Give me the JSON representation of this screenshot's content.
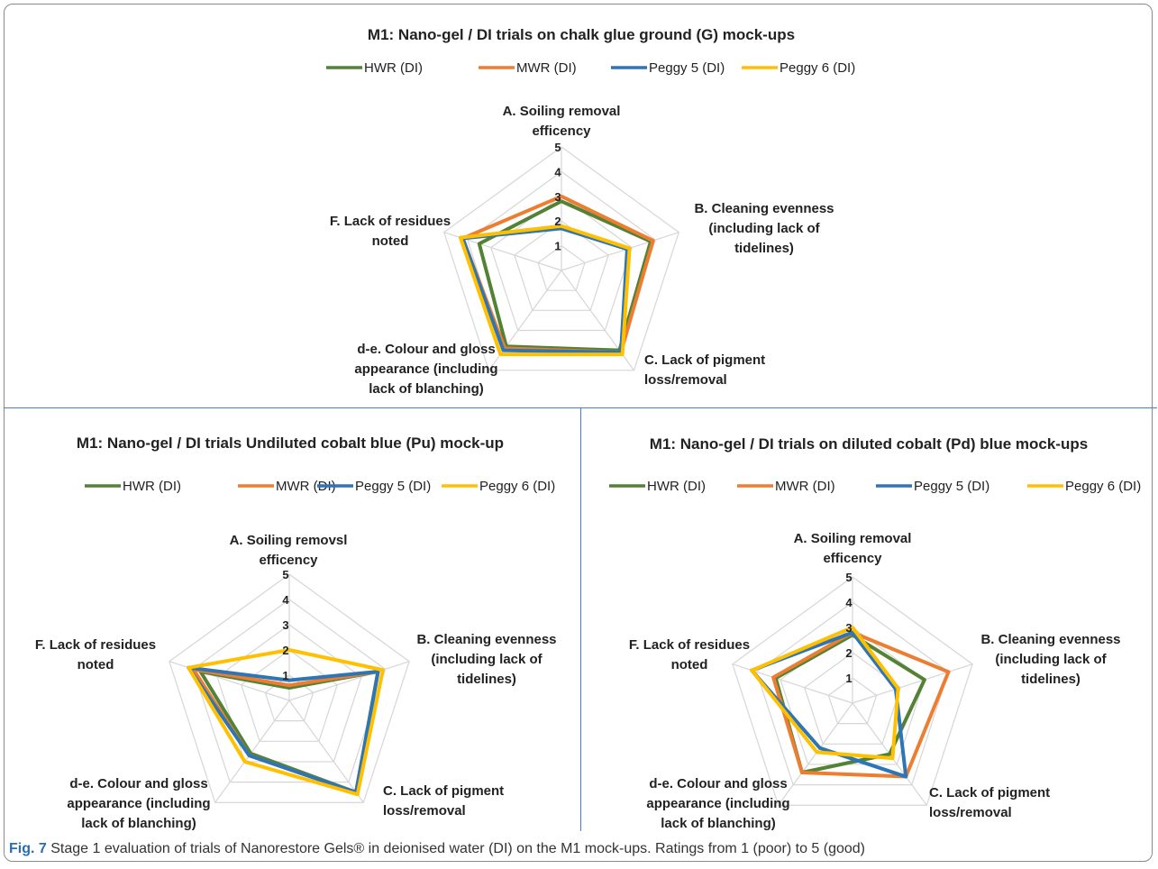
{
  "colors": [
    "#548235",
    "#ED7D31",
    "#2E75B6",
    "#FFC000"
  ],
  "caption": {
    "label": "Fig. 7",
    "text": "Stage 1 evaluation of trials of Nanorestore Gels® in deionised water (DI) on the M1 mock-ups. Ratings from 1 (poor) to 5 (good)"
  },
  "chart_data": [
    {
      "type": "radar",
      "title": "M1: Nano-gel / DI trials on chalk glue ground (G) mock-ups",
      "axes": [
        [
          "A. Soiling removal",
          "efficency"
        ],
        [
          "B. Cleaning evenness",
          "(including lack of",
          "tidelines)"
        ],
        [
          "C. Lack of pigment",
          "loss/removal"
        ],
        [
          "d-e. Colour and gloss",
          "appearance (including",
          "lack of blanching)"
        ],
        [
          "F. Lack of residues",
          "noted"
        ]
      ],
      "rlim": [
        0,
        5
      ],
      "ticks": [
        "1",
        "2",
        "3",
        "4",
        "5"
      ],
      "legend_position": "top",
      "series": [
        {
          "name": "HWR (DI)",
          "values": [
            2.8,
            3.8,
            4.0,
            3.8,
            3.5
          ]
        },
        {
          "name": "MWR (DI)",
          "values": [
            3.0,
            3.9,
            4.1,
            3.9,
            4.2
          ]
        },
        {
          "name": "Peggy 5 (DI)",
          "values": [
            1.7,
            2.8,
            4.1,
            4.0,
            4.2
          ]
        },
        {
          "name": "Peggy 6 (DI)",
          "values": [
            1.8,
            2.9,
            4.2,
            4.2,
            4.3
          ]
        }
      ]
    },
    {
      "type": "radar",
      "title": "M1: Nano-gel / DI trials Undiluted cobalt blue (Pu) mock-up",
      "axes": [
        [
          "A. Soiling removsl",
          "efficency"
        ],
        [
          "B. Cleaning evenness",
          "(including lack of",
          "tidelines)"
        ],
        [
          "C. Lack of pigment",
          "loss/removal"
        ],
        [
          "d-e. Colour and gloss",
          "appearance (including",
          "lack of blanching)"
        ],
        [
          "F. Lack of residues",
          "noted"
        ]
      ],
      "rlim": [
        0,
        5
      ],
      "ticks": [
        "1",
        "2",
        "3",
        "4",
        "5"
      ],
      "legend_position": "top",
      "series": [
        {
          "name": "HWR (DI)",
          "values": [
            0.5,
            3.7,
            4.5,
            2.6,
            3.7
          ]
        },
        {
          "name": "MWR (DI)",
          "values": [
            0.6,
            3.7,
            4.5,
            2.7,
            4.0
          ]
        },
        {
          "name": "Peggy 5 (DI)",
          "values": [
            0.8,
            3.7,
            4.5,
            2.7,
            4.2
          ]
        },
        {
          "name": "Peggy 6 (DI)",
          "values": [
            2.0,
            3.9,
            4.6,
            3.0,
            4.2
          ]
        }
      ]
    },
    {
      "type": "radar",
      "title": "M1: Nano-gel / DI trials on diluted cobalt (Pd) blue mock-ups",
      "axes": [
        [
          "A. Soiling removal",
          "efficency"
        ],
        [
          "B. Cleaning evenness",
          "(including lack of",
          "tidelines)"
        ],
        [
          "C. Lack of pigment",
          "loss/removal"
        ],
        [
          "d-e. Colour and gloss",
          "appearance (including",
          "lack of blanching)"
        ],
        [
          "F. Lack of residues",
          "noted"
        ]
      ],
      "rlim": [
        0,
        5
      ],
      "ticks": [
        "1",
        "2",
        "3",
        "4",
        "5"
      ],
      "legend_position": "top",
      "series": [
        {
          "name": "HWR (DI)",
          "values": [
            2.7,
            3.0,
            2.5,
            3.4,
            3.2
          ]
        },
        {
          "name": "MWR (DI)",
          "values": [
            2.8,
            4.0,
            3.6,
            3.4,
            3.3
          ]
        },
        {
          "name": "Peggy 5 (DI)",
          "values": [
            2.8,
            1.8,
            3.6,
            2.2,
            4.2
          ]
        },
        {
          "name": "Peggy 6 (DI)",
          "values": [
            3.0,
            1.9,
            2.7,
            2.4,
            4.2
          ]
        }
      ]
    }
  ]
}
